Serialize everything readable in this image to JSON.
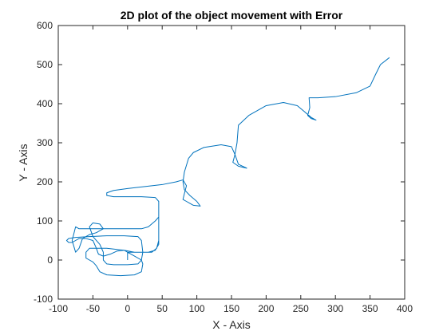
{
  "chart_data": {
    "type": "line",
    "title": "2D plot of the object movement with Error",
    "xlabel": "X - Axis",
    "ylabel": "Y - Axis",
    "xlim": [
      -100,
      400
    ],
    "ylim": [
      -100,
      600
    ],
    "xticks": [
      -100,
      -50,
      0,
      50,
      100,
      150,
      200,
      250,
      300,
      350,
      400
    ],
    "yticks": [
      -100,
      0,
      100,
      200,
      300,
      400,
      500,
      600
    ],
    "grid": false,
    "legend": "none",
    "line_color": "#0072BD",
    "series": [
      {
        "points": [
          [
            0,
            0
          ],
          [
            0,
            20
          ],
          [
            -5,
            25
          ],
          [
            -15,
            23
          ],
          [
            -25,
            15
          ],
          [
            -35,
            10
          ],
          [
            -42,
            15
          ],
          [
            -45,
            30
          ],
          [
            -50,
            50
          ],
          [
            -60,
            55
          ],
          [
            -70,
            55
          ],
          [
            -75,
            50
          ],
          [
            -80,
            45
          ],
          [
            -85,
            45
          ],
          [
            -88,
            50
          ],
          [
            -85,
            55
          ],
          [
            -75,
            58
          ],
          [
            -55,
            60
          ],
          [
            -30,
            62
          ],
          [
            -5,
            62
          ],
          [
            15,
            60
          ],
          [
            20,
            50
          ],
          [
            22,
            20
          ],
          [
            20,
            0
          ],
          [
            15,
            -10
          ],
          [
            0,
            -12
          ],
          [
            -20,
            -12
          ],
          [
            -30,
            -10
          ],
          [
            -35,
            0
          ],
          [
            -35,
            20
          ],
          [
            -40,
            40
          ],
          [
            -50,
            60
          ],
          [
            -55,
            85
          ],
          [
            -50,
            95
          ],
          [
            -40,
            92
          ],
          [
            -35,
            80
          ],
          [
            -45,
            70
          ],
          [
            -55,
            65
          ],
          [
            -60,
            60
          ],
          [
            -65,
            55
          ],
          [
            -70,
            30
          ],
          [
            -75,
            20
          ],
          [
            -80,
            50
          ],
          [
            -75,
            85
          ],
          [
            -70,
            80
          ],
          [
            -60,
            80
          ],
          [
            -40,
            80
          ],
          [
            -20,
            80
          ],
          [
            20,
            80
          ],
          [
            30,
            85
          ],
          [
            40,
            100
          ],
          [
            45,
            110
          ],
          [
            45,
            50
          ],
          [
            42,
            30
          ],
          [
            35,
            20
          ],
          [
            10,
            20
          ],
          [
            -5,
            25
          ],
          [
            -30,
            30
          ],
          [
            -55,
            30
          ],
          [
            -60,
            20
          ],
          [
            -60,
            5
          ],
          [
            -55,
            0
          ],
          [
            -50,
            -5
          ],
          [
            -45,
            -15
          ],
          [
            -40,
            -30
          ],
          [
            -30,
            -38
          ],
          [
            -10,
            -40
          ],
          [
            10,
            -38
          ],
          [
            20,
            -30
          ],
          [
            22,
            -10
          ],
          [
            20,
            0
          ],
          [
            10,
            10
          ],
          [
            0,
            20
          ],
          [
            5,
            20
          ],
          [
            30,
            20
          ],
          [
            40,
            25
          ],
          [
            45,
            40
          ],
          [
            45,
            80
          ],
          [
            45,
            120
          ],
          [
            45,
            150
          ],
          [
            40,
            160
          ],
          [
            20,
            162
          ],
          [
            0,
            162
          ],
          [
            -20,
            162
          ],
          [
            -30,
            165
          ],
          [
            -30,
            172
          ],
          [
            -20,
            178
          ],
          [
            0,
            183
          ],
          [
            25,
            188
          ],
          [
            50,
            193
          ],
          [
            70,
            200
          ],
          [
            80,
            205
          ],
          [
            85,
            190
          ],
          [
            82,
            170
          ],
          [
            80,
            155
          ],
          [
            85,
            150
          ],
          [
            95,
            140
          ],
          [
            105,
            138
          ],
          [
            100,
            150
          ],
          [
            90,
            165
          ],
          [
            82,
            180
          ],
          [
            80,
            200
          ],
          [
            82,
            225
          ],
          [
            88,
            260
          ],
          [
            95,
            275
          ],
          [
            110,
            288
          ],
          [
            135,
            295
          ],
          [
            150,
            290
          ],
          [
            155,
            270
          ],
          [
            152,
            250
          ],
          [
            160,
            240
          ],
          [
            172,
            235
          ],
          [
            160,
            245
          ],
          [
            155,
            270
          ],
          [
            158,
            300
          ],
          [
            160,
            345
          ],
          [
            175,
            370
          ],
          [
            200,
            395
          ],
          [
            225,
            403
          ],
          [
            245,
            395
          ],
          [
            255,
            380
          ],
          [
            265,
            365
          ],
          [
            272,
            358
          ],
          [
            265,
            362
          ],
          [
            260,
            370
          ],
          [
            263,
            390
          ],
          [
            262,
            415
          ],
          [
            275,
            415
          ],
          [
            300,
            418
          ],
          [
            330,
            428
          ],
          [
            350,
            445
          ],
          [
            358,
            475
          ],
          [
            365,
            500
          ],
          [
            378,
            518
          ]
        ]
      }
    ]
  }
}
